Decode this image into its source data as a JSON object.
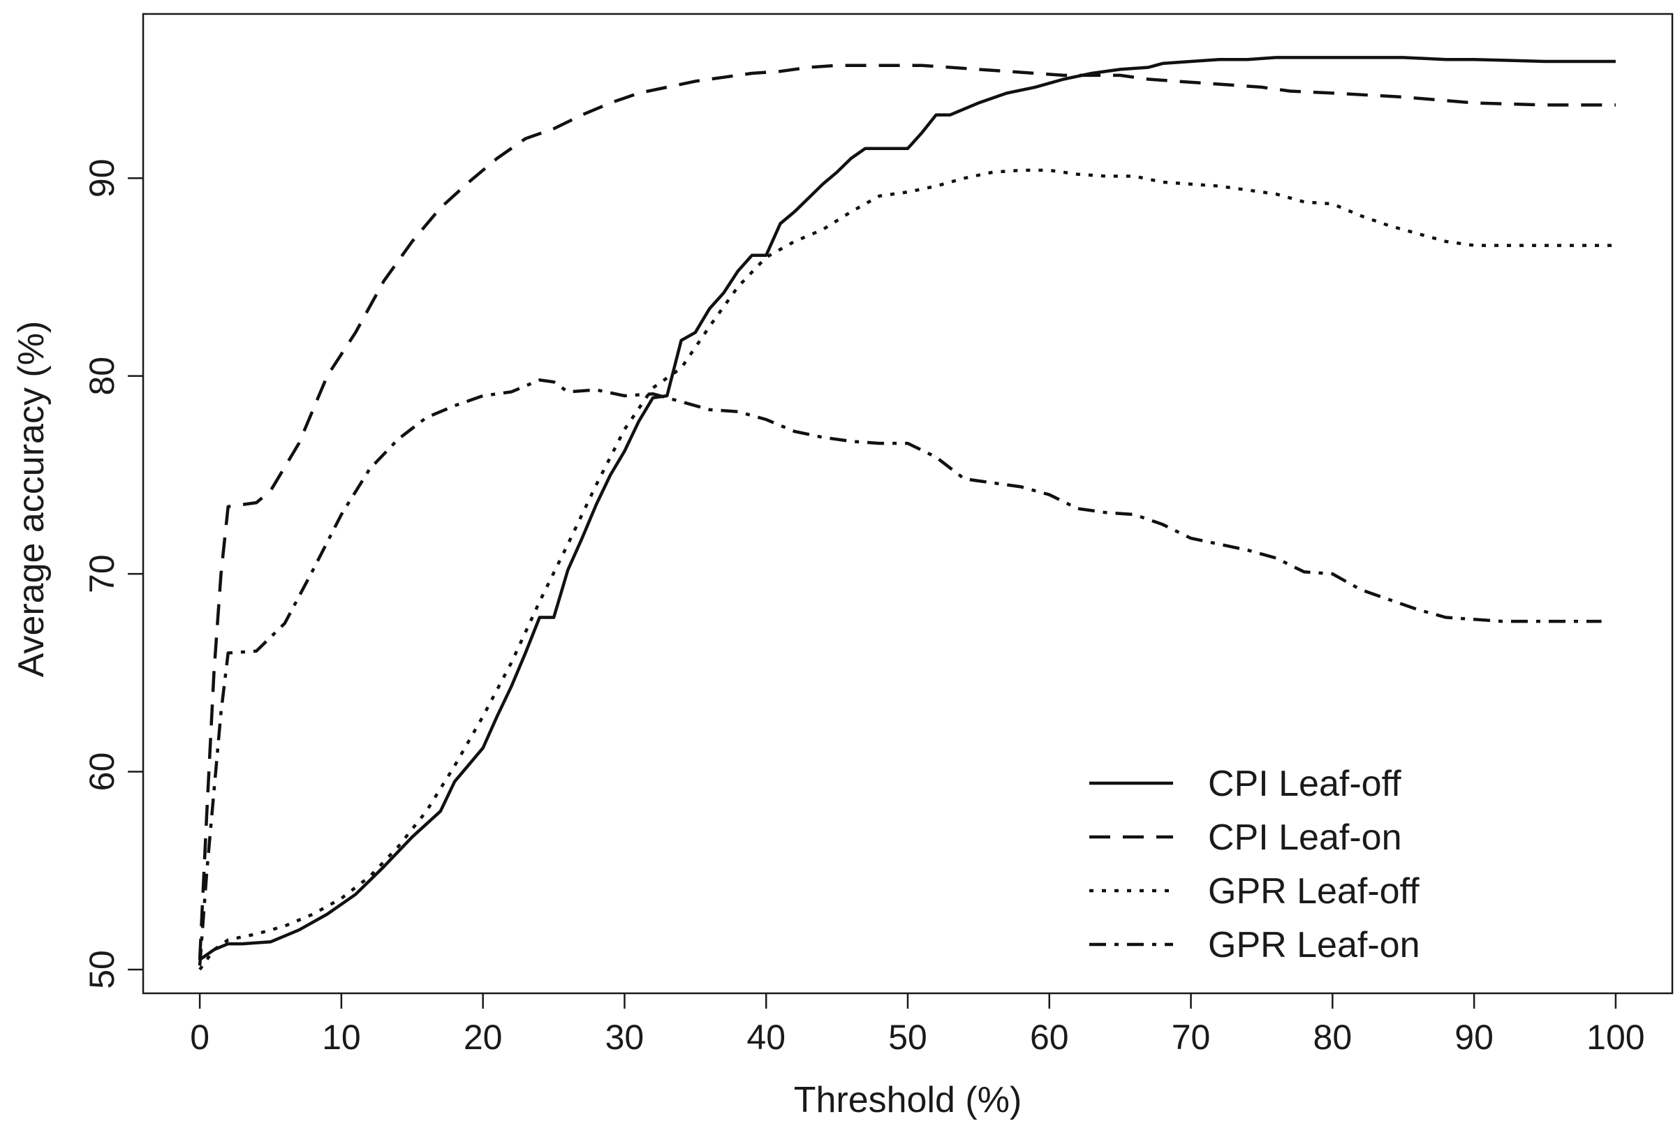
{
  "chart_data": {
    "type": "line",
    "title": "",
    "xlabel": "Threshold (%)",
    "ylabel": "Average accuracy (%)",
    "xlim": [
      -4,
      104
    ],
    "ylim": [
      48.8,
      98.3
    ],
    "x_ticks": [
      0,
      10,
      20,
      30,
      40,
      50,
      60,
      70,
      80,
      90,
      100
    ],
    "y_ticks": [
      50,
      60,
      70,
      80,
      90
    ],
    "grid": false,
    "legend_position": "bottom-right",
    "series": [
      {
        "name": "CPI Leaf-off",
        "style": "solid",
        "color": "#111111",
        "x": [
          0,
          1,
          2,
          3,
          5,
          7,
          9,
          11,
          13,
          15,
          17,
          18,
          20,
          21,
          22,
          23,
          24,
          25,
          26,
          27,
          28,
          29,
          30,
          31,
          32,
          33,
          34,
          35,
          36,
          37,
          38,
          39,
          40,
          41,
          42,
          43,
          44,
          45,
          46,
          47,
          48,
          49,
          50,
          51,
          52,
          53,
          55,
          57,
          59,
          61,
          63,
          65,
          67,
          68,
          70,
          72,
          74,
          76,
          77,
          80,
          82,
          85,
          88,
          90,
          95,
          100
        ],
        "y": [
          50.5,
          51.0,
          51.3,
          51.3,
          51.4,
          52.0,
          52.8,
          53.8,
          55.2,
          56.7,
          58.0,
          59.5,
          61.2,
          62.8,
          64.3,
          66.0,
          67.8,
          67.8,
          70.2,
          71.8,
          73.5,
          75.0,
          76.2,
          77.7,
          78.9,
          79.0,
          81.8,
          82.2,
          83.4,
          84.2,
          85.3,
          86.1,
          86.1,
          87.7,
          88.3,
          89.0,
          89.7,
          90.3,
          91.0,
          91.5,
          91.5,
          91.5,
          91.5,
          92.3,
          93.2,
          93.2,
          93.8,
          94.3,
          94.6,
          95.0,
          95.3,
          95.5,
          95.6,
          95.8,
          95.9,
          96.0,
          96.0,
          96.1,
          96.1,
          96.1,
          96.1,
          96.1,
          96.0,
          96.0,
          95.9,
          95.9
        ]
      },
      {
        "name": "CPI Leaf-on",
        "style": "dashed",
        "color": "#111111",
        "x": [
          0,
          0.5,
          1,
          1.5,
          2,
          3,
          4,
          5,
          7,
          9,
          11,
          13,
          15,
          17,
          19,
          21,
          23,
          25,
          27,
          29,
          31,
          33,
          35,
          37,
          39,
          41,
          43,
          45,
          47,
          49,
          51,
          53,
          55,
          57,
          59,
          61,
          63,
          65,
          67,
          69,
          71,
          73,
          75,
          77,
          80,
          85,
          90,
          95,
          100
        ],
        "y": [
          50.5,
          58.0,
          65.0,
          70.0,
          73.4,
          73.5,
          73.6,
          74.2,
          76.6,
          80.0,
          82.2,
          84.8,
          86.8,
          88.5,
          89.8,
          91.0,
          92.0,
          92.5,
          93.2,
          93.8,
          94.3,
          94.6,
          94.9,
          95.1,
          95.3,
          95.4,
          95.6,
          95.7,
          95.7,
          95.7,
          95.7,
          95.6,
          95.5,
          95.4,
          95.3,
          95.2,
          95.2,
          95.2,
          95.0,
          94.9,
          94.8,
          94.7,
          94.6,
          94.4,
          94.3,
          94.1,
          93.8,
          93.7,
          93.7
        ]
      },
      {
        "name": "GPR Leaf-off",
        "style": "dotted",
        "color": "#111111",
        "x": [
          0,
          1,
          2,
          4,
          6,
          8,
          10,
          12,
          14,
          16,
          18,
          20,
          22,
          24,
          26,
          28,
          30,
          32,
          34,
          36,
          38,
          40,
          42,
          44,
          46,
          48,
          50,
          52,
          54,
          56,
          58,
          60,
          62,
          64,
          66,
          68,
          70,
          72,
          74,
          76,
          78,
          80,
          82,
          84,
          86,
          88,
          90,
          92,
          95,
          100
        ],
        "y": [
          50.0,
          51.0,
          51.5,
          51.8,
          52.2,
          52.8,
          53.6,
          54.7,
          56.2,
          58.0,
          60.3,
          62.8,
          65.5,
          68.6,
          71.5,
          74.5,
          77.3,
          79.4,
          80.4,
          82.5,
          84.5,
          86.0,
          86.8,
          87.4,
          88.3,
          89.1,
          89.3,
          89.6,
          90.0,
          90.3,
          90.4,
          90.4,
          90.2,
          90.1,
          90.1,
          89.8,
          89.7,
          89.6,
          89.4,
          89.2,
          88.8,
          88.7,
          88.1,
          87.6,
          87.2,
          86.8,
          86.6,
          86.6,
          86.6,
          86.6
        ]
      },
      {
        "name": "GPR Leaf-on",
        "style": "dashdot",
        "color": "#111111",
        "x": [
          0,
          0.5,
          1,
          1.5,
          2,
          4,
          6,
          8,
          10,
          12,
          14,
          16,
          18,
          20,
          22,
          24,
          25,
          26,
          28,
          30,
          32,
          34,
          36,
          38,
          40,
          42,
          44,
          46,
          48,
          50,
          52,
          54,
          56,
          58,
          60,
          62,
          64,
          66,
          68,
          70,
          72,
          74,
          76,
          78,
          80,
          82,
          84,
          86,
          88,
          90,
          92,
          95,
          99
        ],
        "y": [
          50.2,
          55.0,
          59.0,
          63.0,
          66.0,
          66.1,
          67.5,
          70.2,
          73.0,
          75.3,
          76.8,
          77.9,
          78.5,
          79.0,
          79.2,
          79.8,
          79.7,
          79.2,
          79.3,
          79.0,
          79.1,
          78.7,
          78.3,
          78.2,
          77.8,
          77.2,
          76.9,
          76.7,
          76.6,
          76.6,
          75.9,
          74.8,
          74.6,
          74.4,
          74.0,
          73.3,
          73.1,
          73.0,
          72.5,
          71.8,
          71.5,
          71.2,
          70.8,
          70.1,
          70.0,
          69.2,
          68.7,
          68.2,
          67.8,
          67.7,
          67.6,
          67.6,
          67.6
        ]
      }
    ]
  }
}
